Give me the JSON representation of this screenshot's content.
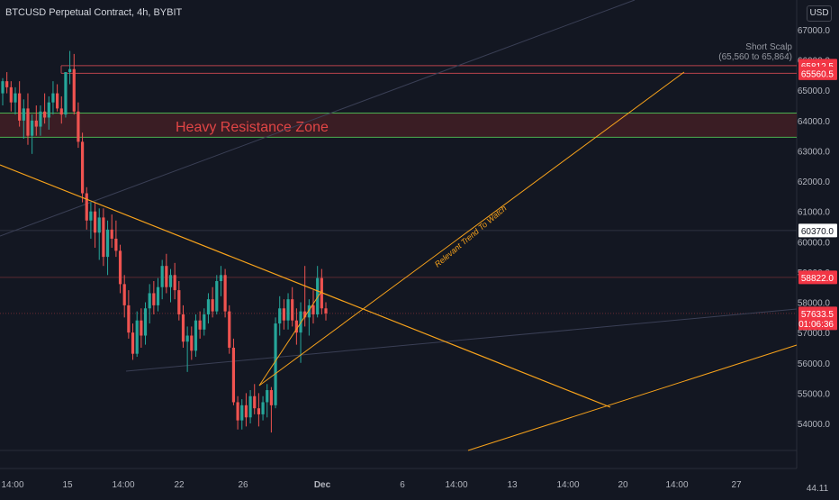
{
  "header": {
    "title": "BTCUSD Perpetual Contract, 4h, BYBIT",
    "unit": "USD"
  },
  "chart_data": {
    "type": "candlestick",
    "y_ticks": [
      67000,
      66000,
      65000,
      64000,
      63000,
      62000,
      61000,
      60000,
      59000,
      58000,
      57000,
      56000,
      55000,
      54000
    ],
    "ylim": [
      53000,
      68500
    ],
    "x_ticks": [
      "14:00",
      "15",
      "14:00",
      "22",
      "26",
      "Dec",
      "6",
      "14:00",
      "13",
      "14:00",
      "20",
      "14:00",
      "27"
    ],
    "x_axis_extra": "44.11",
    "candles": [
      [
        64900,
        65400,
        64500,
        65300
      ],
      [
        65300,
        65600,
        64900,
        65100
      ],
      [
        65100,
        65300,
        64300,
        64600
      ],
      [
        64600,
        65100,
        64200,
        64900
      ],
      [
        64900,
        65300,
        63800,
        64000
      ],
      [
        64000,
        64700,
        63400,
        64400
      ],
      [
        64400,
        64900,
        63200,
        63500
      ],
      [
        63500,
        64200,
        62900,
        64000
      ],
      [
        64000,
        64500,
        63500,
        63800
      ],
      [
        63800,
        64500,
        63500,
        64300
      ],
      [
        64300,
        64900,
        63900,
        64100
      ],
      [
        64100,
        64800,
        63700,
        64600
      ],
      [
        64600,
        65300,
        64200,
        64900
      ],
      [
        64900,
        65200,
        64300,
        64400
      ],
      [
        64400,
        64800,
        63900,
        64200
      ],
      [
        64200,
        65600,
        64100,
        65600
      ],
      [
        65600,
        66300,
        65200,
        65700
      ],
      [
        65700,
        66200,
        64200,
        64300
      ],
      [
        64300,
        64600,
        63100,
        63300
      ],
      [
        63300,
        63600,
        61300,
        61600
      ],
      [
        61600,
        61800,
        60400,
        60700
      ],
      [
        60700,
        61300,
        60100,
        61000
      ],
      [
        61000,
        61300,
        59800,
        60300
      ],
      [
        60300,
        61100,
        59400,
        60800
      ],
      [
        60800,
        61100,
        59200,
        59500
      ],
      [
        59500,
        60700,
        58900,
        60400
      ],
      [
        60400,
        60900,
        59800,
        60100
      ],
      [
        60100,
        60700,
        59500,
        59700
      ],
      [
        59700,
        59900,
        58300,
        58600
      ],
      [
        58600,
        58900,
        57500,
        57900
      ],
      [
        57900,
        58400,
        56800,
        57000
      ],
      [
        57000,
        57300,
        56100,
        56300
      ],
      [
        56300,
        57700,
        56200,
        57400
      ],
      [
        57400,
        57800,
        56500,
        56900
      ],
      [
        56900,
        58000,
        56600,
        57800
      ],
      [
        57800,
        58600,
        57300,
        58300
      ],
      [
        58300,
        58700,
        57600,
        57900
      ],
      [
        57900,
        58800,
        57700,
        58500
      ],
      [
        58500,
        59400,
        58100,
        59200
      ],
      [
        59200,
        59600,
        58300,
        58500
      ],
      [
        58500,
        59100,
        58000,
        58900
      ],
      [
        58900,
        59300,
        58100,
        58400
      ],
      [
        58400,
        58700,
        57400,
        57600
      ],
      [
        57600,
        57900,
        56500,
        56700
      ],
      [
        56700,
        57200,
        55700,
        56900
      ],
      [
        56900,
        57200,
        56100,
        56400
      ],
      [
        56400,
        57600,
        56200,
        57400
      ],
      [
        57400,
        57700,
        56800,
        57100
      ],
      [
        57100,
        57800,
        56900,
        57600
      ],
      [
        57600,
        58300,
        57300,
        58100
      ],
      [
        58100,
        58500,
        57500,
        57700
      ],
      [
        57700,
        58900,
        57600,
        58700
      ],
      [
        58700,
        59200,
        58200,
        58900
      ],
      [
        58900,
        59100,
        57500,
        57700
      ],
      [
        57700,
        57900,
        56300,
        56500
      ],
      [
        56500,
        56800,
        54600,
        54700
      ],
      [
        54700,
        54900,
        53800,
        54100
      ],
      [
        54100,
        54800,
        53800,
        54600
      ],
      [
        54600,
        55000,
        53900,
        54200
      ],
      [
        54200,
        55100,
        54000,
        54900
      ],
      [
        54900,
        55300,
        54300,
        54500
      ],
      [
        54500,
        55000,
        53900,
        54300
      ],
      [
        54300,
        54900,
        54100,
        54700
      ],
      [
        54700,
        55300,
        54200,
        55100
      ],
      [
        55100,
        55200,
        53700,
        54600
      ],
      [
        54600,
        57500,
        54500,
        57300
      ],
      [
        57300,
        58200,
        56900,
        57800
      ],
      [
        57800,
        58100,
        57100,
        57400
      ],
      [
        57400,
        58300,
        57100,
        58100
      ],
      [
        58100,
        58500,
        57200,
        57400
      ],
      [
        57400,
        57800,
        56600,
        57000
      ],
      [
        57000,
        58000,
        56000,
        57700
      ],
      [
        57700,
        59200,
        57200,
        57500
      ],
      [
        57500,
        58100,
        56900,
        57900
      ],
      [
        57900,
        58400,
        57300,
        57600
      ],
      [
        57600,
        59200,
        57500,
        58800
      ],
      [
        58800,
        59100,
        57600,
        57800
      ],
      [
        57800,
        58000,
        57400,
        57633
      ]
    ],
    "price_labels": [
      {
        "value": 65812.5,
        "text": "65812.5",
        "style": "red"
      },
      {
        "value": 65560.5,
        "text": "65560.5",
        "style": "red"
      },
      {
        "value": 60370.0,
        "text": "60370.0",
        "style": "white"
      },
      {
        "value": 58822.0,
        "text": "58822.0",
        "style": "red"
      },
      {
        "value": 57633.5,
        "text": "57633.5",
        "style": "red",
        "sub": "01:06:36"
      }
    ],
    "zone": {
      "label": "Heavy Resistance Zone",
      "from": 63450,
      "to": 64250
    },
    "annotations": {
      "short_scalp": "Short Scalp",
      "short_scalp_range": "(65,560 to 65,864)",
      "trend_note": "Relevant Trend To Watch"
    },
    "colors": {
      "background": "#131722",
      "up": "#26a69a",
      "down": "#ef5350",
      "trend_line": "#f7a21b",
      "zone_fill": "#3a1d24",
      "zone_border": "#4caf50",
      "zone_text": "#e04545",
      "red_label": "#f23645",
      "axis_text": "#b2b5be"
    }
  }
}
